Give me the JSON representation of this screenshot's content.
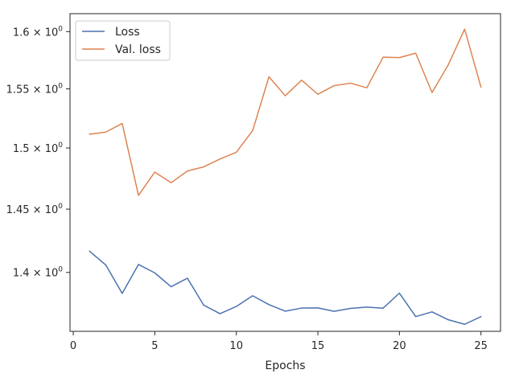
{
  "chart_data": {
    "type": "line",
    "title": "",
    "xlabel": "Epochs",
    "ylabel": "",
    "x": [
      1,
      2,
      3,
      4,
      5,
      6,
      7,
      8,
      9,
      10,
      11,
      12,
      13,
      14,
      15,
      16,
      17,
      18,
      19,
      20,
      21,
      22,
      23,
      24,
      25
    ],
    "series": [
      {
        "name": "Loss",
        "color": "#4c72b0",
        "values": [
          1.4165,
          1.4057,
          1.3838,
          1.4062,
          1.3996,
          1.3889,
          1.3955,
          1.3748,
          1.3683,
          1.3738,
          1.382,
          1.3752,
          1.3702,
          1.3726,
          1.3727,
          1.3701,
          1.3723,
          1.3733,
          1.3725,
          1.384,
          1.3661,
          1.3697,
          1.3637,
          1.3603,
          1.3661
        ]
      },
      {
        "name": "Val. loss",
        "color": "#dd8452",
        "values": [
          1.5115,
          1.5133,
          1.5205,
          1.4611,
          1.4801,
          1.4714,
          1.481,
          1.4844,
          1.4909,
          1.4965,
          1.5145,
          1.5604,
          1.5441,
          1.5575,
          1.5454,
          1.5528,
          1.5549,
          1.5509,
          1.5775,
          1.5771,
          1.581,
          1.5468,
          1.5709,
          1.6022,
          1.5516
        ]
      }
    ],
    "xlim": [
      -0.2,
      26.2
    ],
    "ylim": [
      1.355,
      1.616
    ],
    "xticks": [
      0,
      5,
      10,
      15,
      20,
      25
    ],
    "xtick_labels": [
      "0",
      "5",
      "10",
      "15",
      "20",
      "25"
    ],
    "yscale": "log",
    "yticks": [
      1.4,
      1.45,
      1.5,
      1.55,
      1.6
    ],
    "ytick_labels": [
      {
        "mantissa": "1.4",
        "exponent": "0"
      },
      {
        "mantissa": "1.45",
        "exponent": "0"
      },
      {
        "mantissa": "1.5",
        "exponent": "0"
      },
      {
        "mantissa": "1.55",
        "exponent": "0"
      },
      {
        "mantissa": "1.6",
        "exponent": "0"
      }
    ],
    "ytick_base": "10",
    "grid": false,
    "legend_position": "top-left"
  }
}
